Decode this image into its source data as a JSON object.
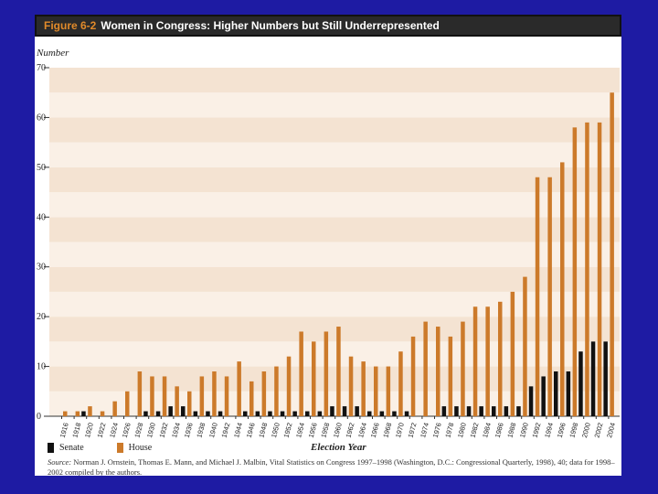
{
  "figure": {
    "number": "Figure 6-2",
    "title": "Women in Congress: Higher Numbers but Still Underrepresented"
  },
  "chart_data": {
    "type": "bar",
    "ylabel": "Number",
    "xlabel": "Election Year",
    "ylim": [
      0,
      70
    ],
    "yticks": [
      0,
      10,
      20,
      30,
      40,
      50,
      60,
      70
    ],
    "banded_background": true,
    "categories": [
      "1916",
      "1918",
      "1920",
      "1922",
      "1924",
      "1926",
      "1928",
      "1930",
      "1932",
      "1934",
      "1936",
      "1938",
      "1940",
      "1942",
      "1944",
      "1946",
      "1948",
      "1950",
      "1952",
      "1954",
      "1956",
      "1958",
      "1960",
      "1962",
      "1964",
      "1966",
      "1968",
      "1970",
      "1972",
      "1974",
      "1976",
      "1978",
      "1980",
      "1982",
      "1984",
      "1986",
      "1988",
      "1990",
      "1992",
      "1994",
      "1996",
      "1998",
      "2000",
      "2002",
      "2004"
    ],
    "series": [
      {
        "name": "Senate",
        "color": "#111111",
        "values": [
          0,
          0,
          1,
          0,
          0,
          0,
          0,
          1,
          1,
          2,
          2,
          1,
          1,
          1,
          0,
          1,
          1,
          1,
          1,
          1,
          1,
          1,
          2,
          2,
          2,
          1,
          1,
          1,
          1,
          0,
          0,
          2,
          2,
          2,
          2,
          2,
          2,
          2,
          6,
          8,
          9,
          9,
          13,
          15,
          15
        ]
      },
      {
        "name": "House",
        "color": "#cc7a2a",
        "values": [
          1,
          1,
          2,
          1,
          3,
          5,
          9,
          8,
          8,
          6,
          5,
          8,
          9,
          8,
          11,
          7,
          9,
          10,
          12,
          17,
          15,
          17,
          18,
          12,
          11,
          10,
          10,
          13,
          16,
          19,
          18,
          16,
          19,
          22,
          22,
          23,
          25,
          28,
          48,
          48,
          51,
          58,
          59,
          59,
          65
        ]
      }
    ]
  },
  "legend": {
    "senate_label": "Senate",
    "house_label": "House"
  },
  "source": {
    "label": "Source:",
    "text": "Norman J. Ornstein, Thomas E. Mann, and Michael J. Malbin, Vital Statistics on Congress 1997–1998 (Washington, D.C.: Congressional Quarterly, 1998), 40; data for 1998–2002 compiled by the authors."
  }
}
